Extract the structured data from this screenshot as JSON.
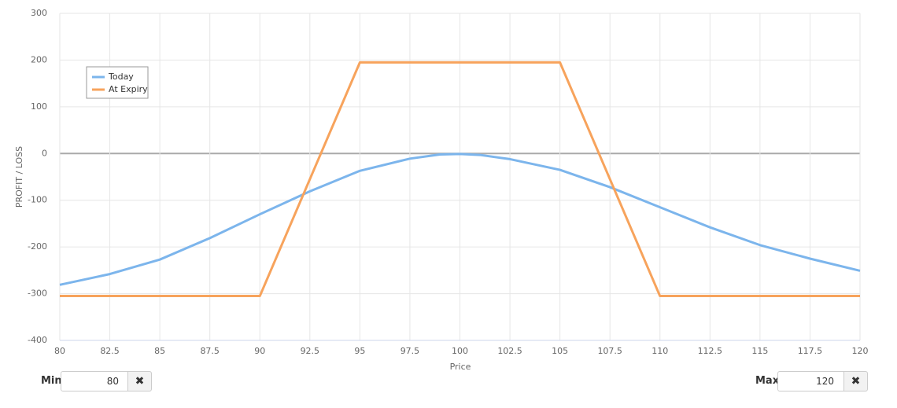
{
  "chart_data": {
    "type": "line",
    "x_label": "Price",
    "y_label": "PROFIT / LOSS",
    "x": [
      80,
      82.5,
      85,
      87.5,
      90,
      92.5,
      95,
      97.5,
      99,
      100,
      101,
      102.5,
      105,
      107.5,
      110,
      112.5,
      115,
      117.5,
      120
    ],
    "series": [
      {
        "name": "Today",
        "color": "#7cb5ec",
        "values": [
          -281,
          -258,
          -227,
          -181,
          -130,
          -81,
          -37,
          -11,
          -2,
          -1,
          -3,
          -12,
          -35,
          -72,
          -115,
          -158,
          -196,
          -225,
          -251
        ]
      },
      {
        "name": "At Expiry",
        "color": "#f7a35c",
        "values": [
          -305,
          -305,
          -305,
          -305,
          -305,
          -55,
          195,
          195,
          195,
          195,
          195,
          195,
          195,
          -55,
          -305,
          -305,
          -305,
          -305,
          -305
        ]
      }
    ],
    "xlim": [
      80,
      120
    ],
    "xticks": [
      80,
      82.5,
      85,
      87.5,
      90,
      92.5,
      95,
      97.5,
      100,
      102.5,
      105,
      107.5,
      110,
      112.5,
      115,
      117.5,
      120
    ],
    "ylim": [
      -400,
      300
    ],
    "yticks": [
      -400,
      -300,
      -200,
      -100,
      0,
      100,
      200,
      300
    ],
    "grid": true,
    "legend": "upper-left"
  },
  "controls": {
    "min_label": "Min",
    "min_value": "80",
    "max_label": "Max",
    "max_value": "120"
  }
}
